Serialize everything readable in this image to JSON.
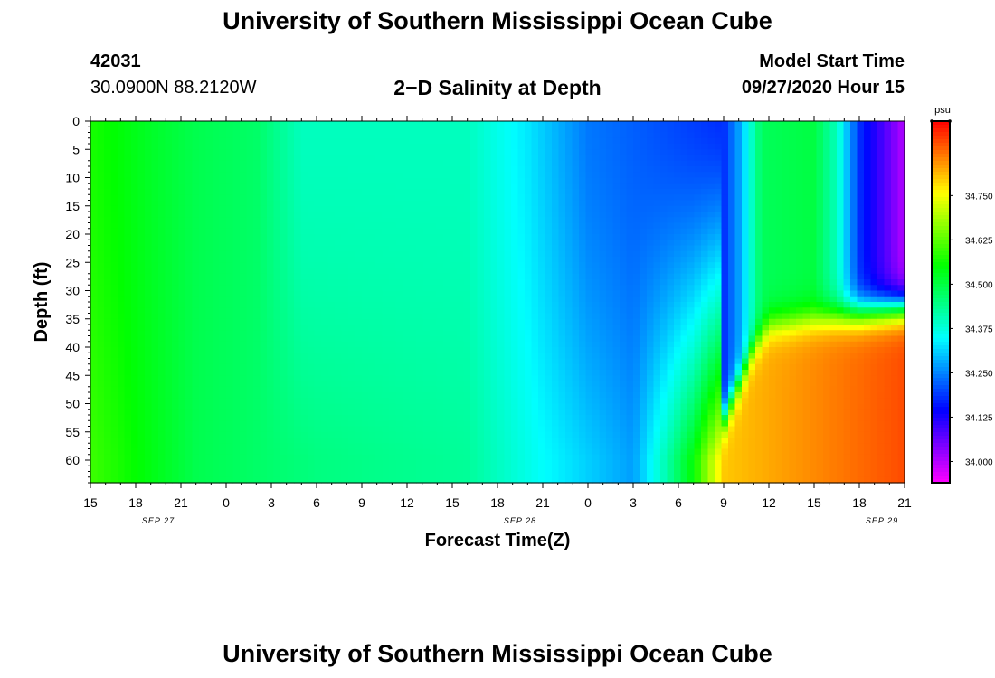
{
  "header": {
    "title": "University of Southern Mississippi Ocean Cube",
    "station_id": "42031",
    "coordinates": "30.0900N 88.2120W",
    "plot_title": "2−D Salinity at Depth",
    "model_start_label": "Model Start Time",
    "model_start_value": "09/27/2020 Hour 15"
  },
  "footer": {
    "title": "University of Southern Mississippi Ocean Cube"
  },
  "chart_data": {
    "type": "heatmap",
    "title": "2−D Salinity at Depth",
    "xlabel": "Forecast Time(Z)",
    "ylabel": "Depth (ft)",
    "x_ticks": [
      "15",
      "18",
      "21",
      "0",
      "3",
      "6",
      "9",
      "12",
      "15",
      "18",
      "21",
      "0",
      "3",
      "6",
      "9",
      "12",
      "15",
      "18",
      "21"
    ],
    "x_hours": [
      15,
      18,
      21,
      24,
      27,
      30,
      33,
      36,
      39,
      42,
      45,
      48,
      51,
      54,
      57,
      60,
      63,
      66,
      69
    ],
    "date_labels": [
      {
        "label": "SEP 27",
        "hour": 19.5
      },
      {
        "label": "SEP 28",
        "hour": 43.5
      },
      {
        "label": "SEP 29",
        "hour": 67.5
      }
    ],
    "y_ticks": [
      0,
      5,
      10,
      15,
      20,
      25,
      30,
      35,
      40,
      45,
      50,
      55,
      60
    ],
    "ylim": [
      0,
      64
    ],
    "xlim_hours": [
      15,
      69
    ],
    "colorbar": {
      "unit": "psu",
      "range": [
        33.94,
        34.96
      ],
      "ticks": [
        34.0,
        34.125,
        34.25,
        34.375,
        34.5,
        34.625,
        34.75
      ],
      "tick_labels": [
        "34.000",
        "34.125",
        "34.250",
        "34.375",
        "34.500",
        "34.625",
        "34.750"
      ]
    },
    "surface_salinity": [
      {
        "hour": 15,
        "psu": 34.57
      },
      {
        "hour": 19,
        "psu": 34.52
      },
      {
        "hour": 22,
        "psu": 34.49
      },
      {
        "hour": 26,
        "psu": 34.47
      },
      {
        "hour": 29,
        "psu": 34.4
      },
      {
        "hour": 34,
        "psu": 34.4
      },
      {
        "hour": 40,
        "psu": 34.4
      },
      {
        "hour": 44,
        "psu": 34.33
      },
      {
        "hour": 48,
        "psu": 34.24
      },
      {
        "hour": 57,
        "psu": 34.18
      },
      {
        "hour": 58,
        "psu": 34.27
      },
      {
        "hour": 59.5,
        "psu": 34.48
      },
      {
        "hour": 63,
        "psu": 34.5
      },
      {
        "hour": 64.5,
        "psu": 34.4
      },
      {
        "hour": 66,
        "psu": 34.18
      },
      {
        "hour": 69,
        "psu": 34.0
      }
    ],
    "bottom_salinity_60ft": [
      {
        "hour": 15,
        "psu": 34.6
      },
      {
        "hour": 22,
        "psu": 34.49
      },
      {
        "hour": 30,
        "psu": 34.45
      },
      {
        "hour": 40,
        "psu": 34.43
      },
      {
        "hour": 45,
        "psu": 34.35
      },
      {
        "hour": 51,
        "psu": 34.27
      },
      {
        "hour": 53,
        "psu": 34.4
      },
      {
        "hour": 55,
        "psu": 34.55
      },
      {
        "hour": 57,
        "psu": 34.8
      },
      {
        "hour": 69,
        "psu": 34.9
      }
    ],
    "halocline_depth_ft": [
      {
        "hour": 57,
        "depth": 53
      },
      {
        "hour": 59,
        "depth": 40
      },
      {
        "hour": 60,
        "depth": 36
      },
      {
        "hour": 69,
        "depth": 33
      }
    ]
  }
}
